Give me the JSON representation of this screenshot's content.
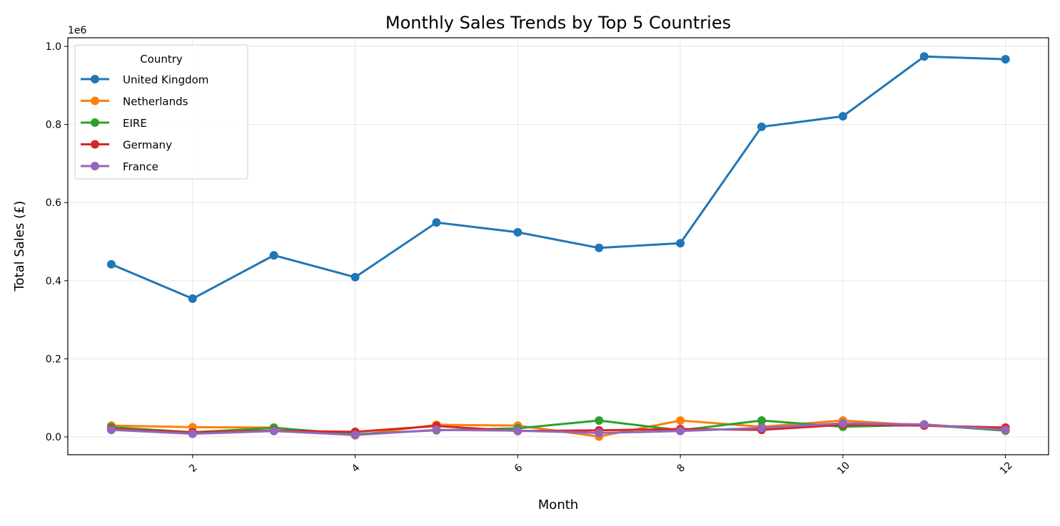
{
  "chart_data": {
    "type": "line",
    "title": "Monthly Sales Trends by Top 5 Countries",
    "xlabel": "Month",
    "ylabel": "Total Sales (£)",
    "y_offset_label": "1e6",
    "x": [
      1,
      2,
      3,
      4,
      5,
      6,
      7,
      8,
      9,
      10,
      11,
      12
    ],
    "xlim": [
      0.465,
      12.53
    ],
    "ylim": [
      -0.0456,
      1.022
    ],
    "y_scale_factor": 1000000,
    "xticks": [
      2,
      4,
      6,
      8,
      10,
      12
    ],
    "yticks": [
      0.0,
      0.2,
      0.4,
      0.6,
      0.8,
      1.0
    ],
    "ytick_labels": [
      "0.0",
      "0.2",
      "0.4",
      "0.6",
      "0.8",
      "1.0"
    ],
    "grid": true,
    "legend": {
      "title": "Country",
      "placement": "upper-left"
    },
    "series": [
      {
        "name": "United Kingdom",
        "color": "#1f77b4",
        "values": [
          0.442,
          0.354,
          0.465,
          0.409,
          0.549,
          0.524,
          0.484,
          0.496,
          0.794,
          0.821,
          0.974,
          0.967
        ]
      },
      {
        "name": "Netherlands",
        "color": "#ff7f0e",
        "values": [
          0.029,
          0.025,
          0.024,
          0.004,
          0.031,
          0.029,
          0.001,
          0.042,
          0.026,
          0.042,
          0.029,
          0.02
        ]
      },
      {
        "name": "EIRE",
        "color": "#2ca02c",
        "values": [
          0.025,
          0.012,
          0.023,
          0.007,
          0.017,
          0.022,
          0.042,
          0.017,
          0.042,
          0.026,
          0.031,
          0.016
        ]
      },
      {
        "name": "Germany",
        "color": "#d62728",
        "values": [
          0.02,
          0.012,
          0.016,
          0.013,
          0.028,
          0.015,
          0.017,
          0.02,
          0.018,
          0.031,
          0.029,
          0.024
        ]
      },
      {
        "name": "France",
        "color": "#9467bd",
        "values": [
          0.018,
          0.008,
          0.015,
          0.005,
          0.018,
          0.016,
          0.01,
          0.015,
          0.023,
          0.035,
          0.032,
          0.018
        ]
      }
    ]
  }
}
